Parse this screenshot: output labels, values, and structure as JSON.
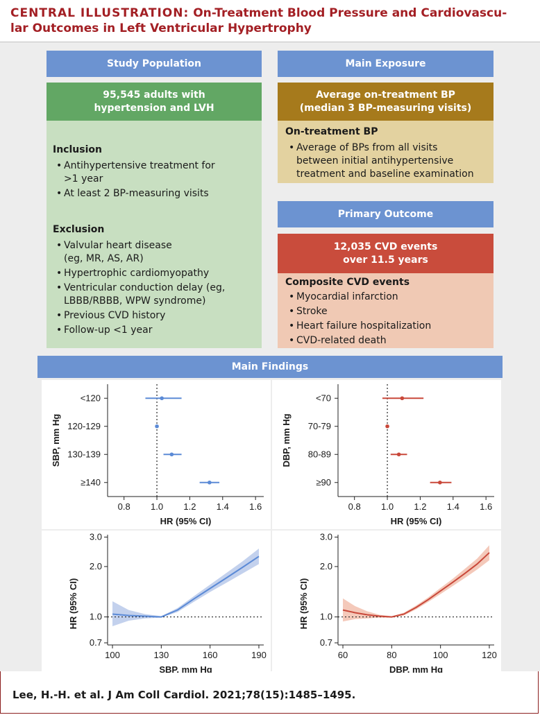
{
  "header": {
    "label": "CENTRAL ILLUSTRATION:",
    "title_line1": "On-Treatment Blood Pressure and Cardiovascu-",
    "title_line2": "lar Outcomes in Left Ventricular Hypertrophy"
  },
  "study_population": {
    "heading": "Study Population",
    "count_line1": "95,545 adults with",
    "count_line2": "hypertension and LVH",
    "inclusion_title": "Inclusion",
    "inclusion": [
      "Antihypertensive treatment for >1 year",
      "At least 2 BP-measuring visits"
    ],
    "exclusion_title": "Exclusion",
    "exclusion": [
      "Valvular heart disease (eg, MR, AS, AR)",
      "Hypertrophic cardiomyopathy",
      "Ventricular conduction delay (eg, LBBB/RBBB, WPW syndrome)",
      "Previous CVD history",
      "Follow-up <1 year"
    ]
  },
  "main_exposure": {
    "heading": "Main Exposure",
    "box_line1": "Average on-treatment BP",
    "box_line2": "(median 3 BP-measuring visits)",
    "detail_title": "On-treatment BP",
    "detail": [
      "Average of BPs from all visits between initial antihypertensive treatment and baseline examination"
    ]
  },
  "primary_outcome": {
    "heading": "Primary Outcome",
    "box_line1": "12,035 CVD events",
    "box_line2": "over 11.5 years",
    "detail_title": "Composite CVD events",
    "detail": [
      "Myocardial infarction",
      "Stroke",
      "Heart failure hospitalization",
      "CVD-related death"
    ]
  },
  "main_findings": {
    "heading": "Main Findings"
  },
  "colors": {
    "blue": "#5b8ad6",
    "red": "#c9483a",
    "blue_band": "#b8c9ea",
    "red_band": "#f2bfae"
  },
  "chart_data": [
    {
      "type": "forest",
      "ylabel": "SBP, mm Hg",
      "xlabel": "HR (95% CI)",
      "xlim": [
        0.7,
        1.65
      ],
      "xticks": [
        "0.8",
        "1.0",
        "1.2",
        "1.4",
        "1.6"
      ],
      "reference": 1.0,
      "rows": [
        {
          "label": "<120",
          "hr": 1.03,
          "lo": 0.93,
          "hi": 1.15
        },
        {
          "label": "120-129",
          "hr": 1.0,
          "lo": 1.0,
          "hi": 1.0
        },
        {
          "label": "130-139",
          "hr": 1.09,
          "lo": 1.04,
          "hi": 1.15
        },
        {
          "label": "≥140",
          "hr": 1.32,
          "lo": 1.26,
          "hi": 1.38
        }
      ]
    },
    {
      "type": "forest",
      "ylabel": "DBP, mm Hg",
      "xlabel": "HR (95% CI)",
      "xlim": [
        0.7,
        1.65
      ],
      "xticks": [
        "0.8",
        "1.0",
        "1.2",
        "1.4",
        "1.6"
      ],
      "reference": 1.0,
      "rows": [
        {
          "label": "<70",
          "hr": 1.09,
          "lo": 0.97,
          "hi": 1.22
        },
        {
          "label": "70-79",
          "hr": 1.0,
          "lo": 1.0,
          "hi": 1.0
        },
        {
          "label": "80-89",
          "hr": 1.07,
          "lo": 1.02,
          "hi": 1.12
        },
        {
          "label": "≥90",
          "hr": 1.32,
          "lo": 1.26,
          "hi": 1.39
        }
      ]
    },
    {
      "type": "line",
      "xlabel": "SBP, mm Hg",
      "ylabel": "HR (95% CI)",
      "log_y": true,
      "xlim": [
        97,
        193
      ],
      "ylim": [
        0.68,
        3.1
      ],
      "xticks": [
        "100",
        "130",
        "160",
        "190"
      ],
      "yticks": [
        "3.0",
        "2.0",
        "1.0",
        "0.7"
      ],
      "reference": 1.0,
      "x": [
        100,
        110,
        120,
        130,
        140,
        150,
        160,
        170,
        180,
        190
      ],
      "y": [
        1.04,
        1.02,
        1.01,
        1.0,
        1.1,
        1.28,
        1.48,
        1.71,
        1.98,
        2.3
      ],
      "lower": [
        0.88,
        0.95,
        0.98,
        0.99,
        1.07,
        1.23,
        1.41,
        1.6,
        1.82,
        2.07
      ],
      "upper": [
        1.24,
        1.1,
        1.04,
        1.01,
        1.13,
        1.33,
        1.56,
        1.83,
        2.15,
        2.56
      ]
    },
    {
      "type": "line",
      "xlabel": "DBP, mm Hg",
      "ylabel": "HR (95% CI)",
      "log_y": true,
      "xlim": [
        58,
        122
      ],
      "ylim": [
        0.68,
        3.1
      ],
      "xticks": [
        "60",
        "80",
        "100",
        "120"
      ],
      "yticks": [
        "3.0",
        "2.0",
        "1.0",
        "0.7"
      ],
      "reference": 1.0,
      "x": [
        60,
        65,
        70,
        75,
        80,
        85,
        90,
        95,
        100,
        105,
        110,
        115,
        120
      ],
      "y": [
        1.1,
        1.06,
        1.03,
        1.01,
        1.0,
        1.04,
        1.14,
        1.27,
        1.43,
        1.61,
        1.82,
        2.07,
        2.42
      ],
      "lower": [
        0.94,
        0.97,
        0.98,
        0.99,
        0.99,
        1.02,
        1.11,
        1.23,
        1.37,
        1.53,
        1.71,
        1.92,
        2.18
      ],
      "upper": [
        1.29,
        1.16,
        1.08,
        1.03,
        1.01,
        1.06,
        1.17,
        1.31,
        1.49,
        1.69,
        1.94,
        2.23,
        2.68
      ]
    }
  ],
  "citation": "Lee, H.-H. et al. J Am Coll Cardiol. 2021;78(15):1485–1495."
}
